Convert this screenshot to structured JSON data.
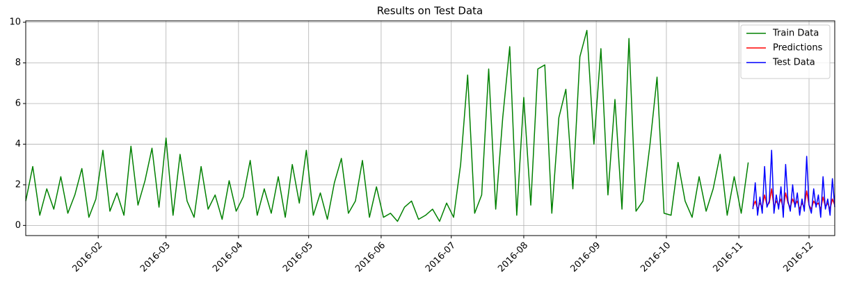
{
  "chart_data": {
    "type": "line",
    "title": "Results on Test Data",
    "xlim": [
      0,
      346
    ],
    "ylim": [
      -0.5,
      10.07
    ],
    "xticks": [
      {
        "value": 31,
        "label": "2016-02"
      },
      {
        "value": 60,
        "label": "2016-03"
      },
      {
        "value": 91,
        "label": "2016-04"
      },
      {
        "value": 121,
        "label": "2016-05"
      },
      {
        "value": 152,
        "label": "2016-06"
      },
      {
        "value": 182,
        "label": "2016-07"
      },
      {
        "value": 213,
        "label": "2016-08"
      },
      {
        "value": 244,
        "label": "2016-09"
      },
      {
        "value": 274,
        "label": "2016-10"
      },
      {
        "value": 305,
        "label": "2016-11"
      },
      {
        "value": 335,
        "label": "2016-12"
      }
    ],
    "yticks": [
      0,
      2,
      4,
      6,
      8,
      10
    ],
    "grid": true,
    "legend": "upper-right",
    "series": [
      {
        "name": "Train Data",
        "color": "green",
        "x": [
          0,
          3,
          6,
          9,
          12,
          15,
          18,
          21,
          24,
          27,
          30,
          33,
          36,
          39,
          42,
          45,
          48,
          51,
          54,
          57,
          60,
          63,
          66,
          69,
          72,
          75,
          78,
          81,
          84,
          87,
          90,
          93,
          96,
          99,
          102,
          105,
          108,
          111,
          114,
          117,
          120,
          123,
          126,
          129,
          132,
          135,
          138,
          141,
          144,
          147,
          150,
          153,
          156,
          159,
          162,
          165,
          168,
          171,
          174,
          177,
          180,
          183,
          186,
          189,
          192,
          195,
          198,
          201,
          204,
          207,
          210,
          213,
          216,
          219,
          222,
          225,
          228,
          231,
          234,
          237,
          240,
          243,
          246,
          249,
          252,
          255,
          258,
          261,
          264,
          267,
          270,
          273,
          276,
          279,
          282,
          285,
          288,
          291,
          294,
          297,
          300,
          303,
          306,
          309
        ],
        "values": [
          1.2,
          2.9,
          0.5,
          1.8,
          0.8,
          2.4,
          0.6,
          1.5,
          2.8,
          0.4,
          1.3,
          3.7,
          0.7,
          1.6,
          0.5,
          3.9,
          1.0,
          2.2,
          3.8,
          0.9,
          4.3,
          0.5,
          3.5,
          1.2,
          0.4,
          2.9,
          0.8,
          1.5,
          0.3,
          2.2,
          0.7,
          1.4,
          3.2,
          0.5,
          1.8,
          0.6,
          2.4,
          0.4,
          3.0,
          1.1,
          3.7,
          0.5,
          1.6,
          0.3,
          2.1,
          3.3,
          0.6,
          1.2,
          3.2,
          0.4,
          1.9,
          0.4,
          0.6,
          0.2,
          0.9,
          1.2,
          0.3,
          0.5,
          0.8,
          0.2,
          1.1,
          0.4,
          3.0,
          7.4,
          0.6,
          1.5,
          7.7,
          0.8,
          5.3,
          8.8,
          0.5,
          6.3,
          1.0,
          7.7,
          7.9,
          0.6,
          5.3,
          6.7,
          1.8,
          8.3,
          9.6,
          4.0,
          8.7,
          1.5,
          6.2,
          0.8,
          9.2,
          0.7,
          1.2,
          4.0,
          7.3,
          0.6,
          0.5,
          3.1,
          1.2,
          0.4,
          2.4,
          0.7,
          1.8,
          3.5,
          0.5,
          2.4,
          0.6,
          3.1
        ]
      },
      {
        "name": "Predictions",
        "color": "red",
        "x": [
          311,
          312,
          313,
          314,
          315,
          316,
          317,
          318,
          319,
          320,
          321,
          322,
          323,
          324,
          325,
          326,
          327,
          328,
          329,
          330,
          331,
          332,
          333,
          334,
          335,
          336,
          337,
          338,
          339,
          340,
          341,
          342,
          343,
          344,
          345,
          346
        ],
        "values": [
          0.9,
          1.2,
          0.8,
          1.1,
          0.9,
          1.5,
          1.0,
          1.1,
          1.8,
          0.9,
          1.2,
          1.0,
          1.3,
          0.8,
          1.6,
          1.1,
          0.9,
          1.3,
          1.0,
          1.2,
          0.8,
          1.1,
          0.9,
          1.7,
          1.0,
          0.8,
          1.2,
          1.0,
          1.1,
          0.8,
          1.4,
          0.9,
          1.1,
          0.8,
          1.3,
          1.0
        ]
      },
      {
        "name": "Test Data",
        "color": "blue",
        "x": [
          311,
          312,
          313,
          314,
          315,
          316,
          317,
          318,
          319,
          320,
          321,
          322,
          323,
          324,
          325,
          326,
          327,
          328,
          329,
          330,
          331,
          332,
          333,
          334,
          335,
          336,
          337,
          338,
          339,
          340,
          341,
          342,
          343,
          344,
          345,
          346
        ],
        "values": [
          0.8,
          2.1,
          0.5,
          1.4,
          0.6,
          2.9,
          0.9,
          1.2,
          3.7,
          0.6,
          1.5,
          0.8,
          1.9,
          0.4,
          3.0,
          1.2,
          0.7,
          2.0,
          0.9,
          1.6,
          0.5,
          1.3,
          0.7,
          3.4,
          1.0,
          0.6,
          1.8,
          0.9,
          1.5,
          0.4,
          2.4,
          0.8,
          1.3,
          0.5,
          2.3,
          0.9
        ]
      }
    ]
  }
}
